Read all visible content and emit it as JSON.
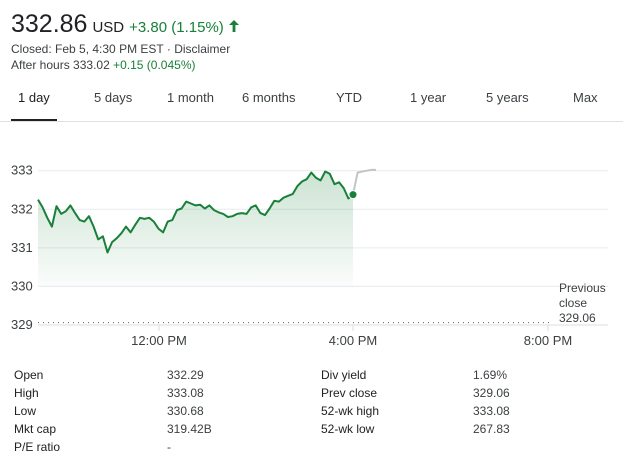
{
  "quote": {
    "price": "332.86",
    "currency": "USD",
    "change": "+3.80 (1.15%)",
    "closed_text": "Closed: Feb 5, 4:30 PM EST",
    "separator": " · ",
    "disclaimer": "Disclaimer",
    "after_hours_label": "After hours",
    "after_hours_price": "333.02",
    "after_hours_change": "+0.15 (0.045%)",
    "up_color": "#188038"
  },
  "tabs": [
    {
      "label": "1 day",
      "active": true
    },
    {
      "label": "5 days",
      "active": false
    },
    {
      "label": "1 month",
      "active": false
    },
    {
      "label": "6 months",
      "active": false
    },
    {
      "label": "YTD",
      "active": false
    },
    {
      "label": "1 year",
      "active": false
    },
    {
      "label": "5 years",
      "active": false
    },
    {
      "label": "Max",
      "active": false
    }
  ],
  "chart_data": {
    "type": "line",
    "yticks": [
      "333",
      "332",
      "331",
      "330",
      "329"
    ],
    "xticks": [
      "12:00 PM",
      "4:00 PM",
      "8:00 PM"
    ],
    "ylim": [
      329,
      333.2
    ],
    "previous_close_label": [
      "Previous",
      "close"
    ],
    "previous_close_value": "329.06",
    "grid": "horizontal",
    "series_regular": [
      332.25,
      332.05,
      331.78,
      331.55,
      332.08,
      331.88,
      331.95,
      332.1,
      331.9,
      331.72,
      331.68,
      331.82,
      331.55,
      331.22,
      331.3,
      330.88,
      331.15,
      331.25,
      331.38,
      331.55,
      331.4,
      331.6,
      331.78,
      331.75,
      331.78,
      331.68,
      331.5,
      331.4,
      331.68,
      331.72,
      331.98,
      332.02,
      332.2,
      332.15,
      332.1,
      332.12,
      332.02,
      332.1,
      331.98,
      331.92,
      331.88,
      331.8,
      331.82,
      331.88,
      331.9,
      331.88,
      332.05,
      332.1,
      331.9,
      331.85,
      332.02,
      332.22,
      332.2,
      332.3,
      332.35,
      332.4,
      332.6,
      332.72,
      332.78,
      332.95,
      332.82,
      332.75,
      332.98,
      332.92,
      332.65,
      332.7,
      332.55,
      332.28,
      332.38
    ],
    "series_after_hours": [
      332.38,
      332.95,
      332.98,
      333.0,
      333.02,
      333.02
    ]
  },
  "stats": [
    {
      "label1": "Open",
      "value1": "332.29",
      "label2": "Div yield",
      "value2": "1.69%"
    },
    {
      "label1": "High",
      "value1": "333.08",
      "label2": "Prev close",
      "value2": "329.06"
    },
    {
      "label1": "Low",
      "value1": "330.68",
      "label2": "52-wk high",
      "value2": "333.08"
    },
    {
      "label1": "Mkt cap",
      "value1": "319.42B",
      "label2": "52-wk low",
      "value2": "267.83"
    },
    {
      "label1": "P/E ratio",
      "value1": "-",
      "label2": "",
      "value2": ""
    }
  ]
}
